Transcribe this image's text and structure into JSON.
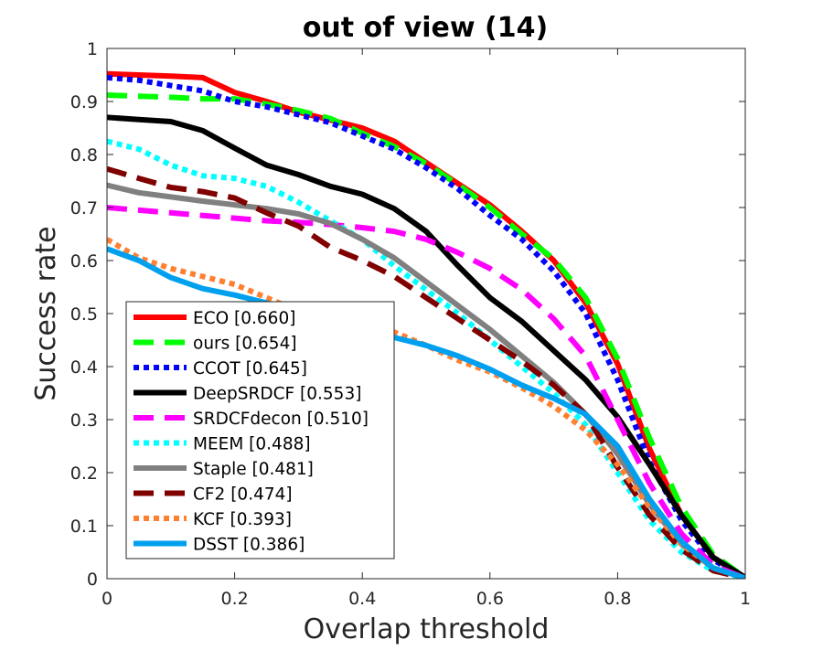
{
  "chart_data": {
    "type": "line",
    "title": "out of view (14)",
    "xlabel": "Overlap threshold",
    "ylabel": "Success rate",
    "xlim": [
      0,
      1
    ],
    "ylim": [
      0,
      1
    ],
    "xticks": [
      0,
      0.2,
      0.4,
      0.6,
      0.8,
      1
    ],
    "xtick_labels": [
      "0",
      "0.2",
      "0.4",
      "0.6",
      "0.8",
      "1"
    ],
    "yticks": [
      0,
      0.1,
      0.2,
      0.3,
      0.4,
      0.5,
      0.6,
      0.7,
      0.8,
      0.9,
      1
    ],
    "ytick_labels": [
      "0",
      "0.1",
      "0.2",
      "0.3",
      "0.4",
      "0.5",
      "0.6",
      "0.7",
      "0.8",
      "0.9",
      "1"
    ],
    "grid": false,
    "legend_position": "bottom-left",
    "x": [
      0,
      0.05,
      0.1,
      0.15,
      0.2,
      0.25,
      0.3,
      0.35,
      0.4,
      0.45,
      0.5,
      0.55,
      0.6,
      0.65,
      0.7,
      0.75,
      0.8,
      0.85,
      0.9,
      0.95,
      1
    ],
    "series": [
      {
        "name": "ECO [0.660]",
        "color": "#ff0000",
        "style": "solid",
        "values": [
          0.952,
          0.95,
          0.948,
          0.945,
          0.917,
          0.9,
          0.88,
          0.865,
          0.85,
          0.825,
          0.785,
          0.745,
          0.705,
          0.655,
          0.6,
          0.52,
          0.405,
          0.245,
          0.12,
          0.04,
          0.002
        ]
      },
      {
        "name": "ours [0.654]",
        "color": "#00ff00",
        "style": "dash",
        "values": [
          0.912,
          0.91,
          0.908,
          0.905,
          0.905,
          0.895,
          0.883,
          0.868,
          0.84,
          0.815,
          0.783,
          0.743,
          0.7,
          0.65,
          0.603,
          0.53,
          0.415,
          0.265,
          0.135,
          0.045,
          0.002
        ]
      },
      {
        "name": "CCOT [0.645]",
        "color": "#0000ff",
        "style": "dot",
        "values": [
          0.945,
          0.94,
          0.93,
          0.92,
          0.9,
          0.89,
          0.875,
          0.86,
          0.835,
          0.81,
          0.775,
          0.735,
          0.685,
          0.64,
          0.58,
          0.5,
          0.375,
          0.22,
          0.11,
          0.035,
          0.002
        ]
      },
      {
        "name": "DeepSRDCF [0.553]",
        "color": "#000000",
        "style": "solid",
        "values": [
          0.87,
          0.866,
          0.862,
          0.845,
          0.812,
          0.78,
          0.762,
          0.74,
          0.725,
          0.698,
          0.655,
          0.59,
          0.53,
          0.485,
          0.43,
          0.375,
          0.305,
          0.215,
          0.12,
          0.04,
          0.002
        ]
      },
      {
        "name": "SRDCFdecon [0.510]",
        "color": "#ff00ff",
        "style": "dash",
        "values": [
          0.7,
          0.695,
          0.69,
          0.685,
          0.68,
          0.675,
          0.672,
          0.668,
          0.662,
          0.655,
          0.64,
          0.615,
          0.585,
          0.545,
          0.49,
          0.42,
          0.3,
          0.18,
          0.085,
          0.025,
          0.001
        ]
      },
      {
        "name": "MEEM [0.488]",
        "color": "#00ffff",
        "style": "dot",
        "values": [
          0.825,
          0.81,
          0.78,
          0.76,
          0.755,
          0.74,
          0.71,
          0.675,
          0.64,
          0.59,
          0.545,
          0.5,
          0.45,
          0.4,
          0.35,
          0.29,
          0.2,
          0.11,
          0.05,
          0.015,
          0.001
        ]
      },
      {
        "name": "Staple [0.481]",
        "color": "#808080",
        "style": "solid",
        "values": [
          0.742,
          0.728,
          0.72,
          0.712,
          0.705,
          0.698,
          0.688,
          0.67,
          0.64,
          0.605,
          0.56,
          0.515,
          0.47,
          0.42,
          0.37,
          0.31,
          0.235,
          0.14,
          0.065,
          0.02,
          0.001
        ]
      },
      {
        "name": "CF2 [0.474]",
        "color": "#800000",
        "style": "dash",
        "values": [
          0.773,
          0.755,
          0.738,
          0.73,
          0.718,
          0.69,
          0.665,
          0.625,
          0.6,
          0.57,
          0.53,
          0.49,
          0.45,
          0.41,
          0.365,
          0.31,
          0.21,
          0.12,
          0.055,
          0.015,
          0.001
        ]
      },
      {
        "name": "KCF [0.393]",
        "color": "#ff8030",
        "style": "dot",
        "values": [
          0.64,
          0.605,
          0.585,
          0.57,
          0.555,
          0.53,
          0.505,
          0.49,
          0.478,
          0.465,
          0.44,
          0.412,
          0.39,
          0.36,
          0.325,
          0.28,
          0.215,
          0.135,
          0.065,
          0.02,
          0.001
        ]
      },
      {
        "name": "DSST [0.386]",
        "color": "#00a0ef",
        "style": "solid",
        "values": [
          0.622,
          0.6,
          0.568,
          0.547,
          0.535,
          0.52,
          0.5,
          0.48,
          0.465,
          0.455,
          0.44,
          0.42,
          0.395,
          0.365,
          0.34,
          0.31,
          0.25,
          0.15,
          0.07,
          0.02,
          0.001
        ]
      }
    ]
  }
}
